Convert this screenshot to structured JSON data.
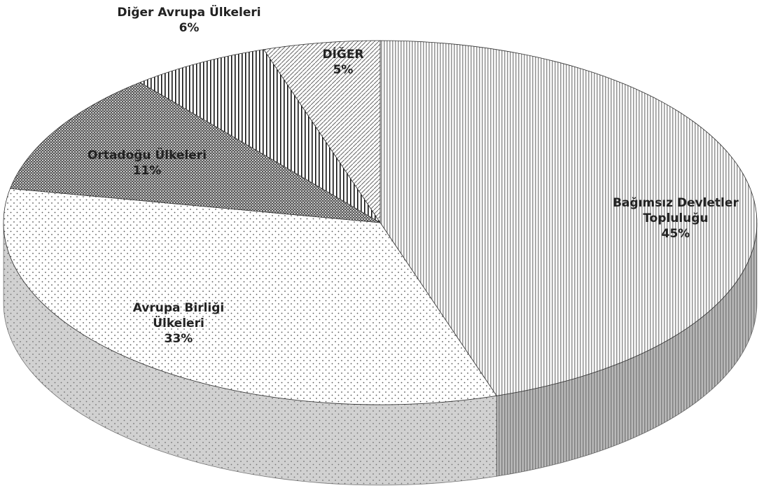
{
  "chart_data": {
    "type": "pie",
    "categories": [
      "Bağımsız Devletler Topluluğu",
      "Avrupa Birliği Ülkeleri",
      "Ortadoğu Ülkeleri",
      "Diğer Avrupa Ülkeleri",
      "DİĞER"
    ],
    "values": [
      45,
      33,
      11,
      6,
      5
    ],
    "value_labels": [
      "45%",
      "33%",
      "11%",
      "6%",
      "5%"
    ]
  }
}
